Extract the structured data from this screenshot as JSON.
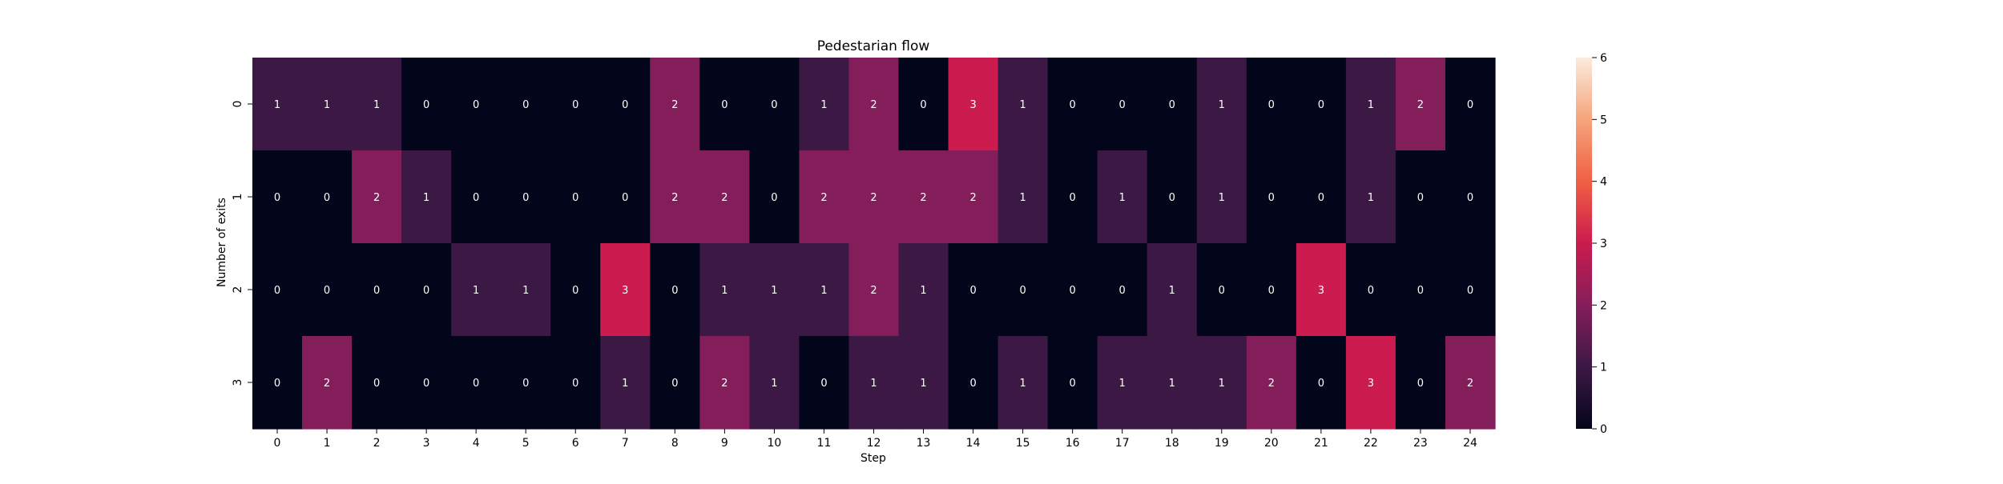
{
  "chart_data": {
    "type": "heatmap",
    "title": "Pedestarian flow",
    "xlabel": "Step",
    "ylabel": "Number of exits",
    "x_categories": [
      "0",
      "1",
      "2",
      "3",
      "4",
      "5",
      "6",
      "7",
      "8",
      "9",
      "10",
      "11",
      "12",
      "13",
      "14",
      "15",
      "16",
      "17",
      "18",
      "19",
      "20",
      "21",
      "22",
      "23",
      "24"
    ],
    "y_categories": [
      "0",
      "1",
      "2",
      "3"
    ],
    "values": [
      [
        1,
        1,
        1,
        0,
        0,
        0,
        0,
        0,
        2,
        0,
        0,
        1,
        2,
        0,
        3,
        1,
        0,
        0,
        0,
        1,
        0,
        0,
        1,
        2,
        0
      ],
      [
        0,
        0,
        2,
        1,
        0,
        0,
        0,
        0,
        2,
        2,
        0,
        2,
        2,
        2,
        2,
        1,
        0,
        1,
        0,
        1,
        0,
        0,
        1,
        0,
        0
      ],
      [
        0,
        0,
        0,
        0,
        1,
        1,
        0,
        3,
        0,
        1,
        1,
        1,
        2,
        1,
        0,
        0,
        0,
        0,
        1,
        0,
        0,
        3,
        0,
        0,
        0
      ],
      [
        0,
        2,
        0,
        0,
        0,
        0,
        0,
        1,
        0,
        2,
        1,
        0,
        1,
        1,
        0,
        1,
        0,
        1,
        1,
        1,
        2,
        0,
        3,
        0,
        2
      ]
    ],
    "colorbar": {
      "min": 0,
      "max": 6,
      "ticks": [
        "0",
        "1",
        "2",
        "3",
        "4",
        "5",
        "6"
      ]
    },
    "colors": {
      "0": "#03051a",
      "1": "#3c1844",
      "2": "#841e5a",
      "3": "#cb1b4f",
      "colorbar_stops": [
        "#03051a",
        "#3c1844",
        "#841e5a",
        "#cb1b4f",
        "#f06043",
        "#f6a47c",
        "#faebdd"
      ]
    }
  }
}
